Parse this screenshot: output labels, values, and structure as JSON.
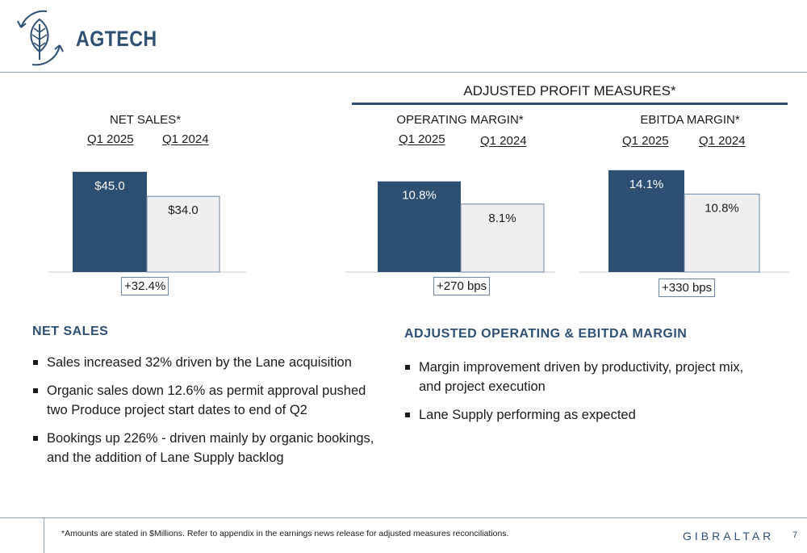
{
  "header": {
    "title": "AGTECH"
  },
  "adjusted_group": {
    "title": "ADJUSTED PROFIT MEASURES*"
  },
  "chart_data": [
    {
      "type": "bar",
      "title": "NET SALES*",
      "categories": [
        "Q1 2025",
        "Q1 2024"
      ],
      "values": [
        45.0,
        34.0
      ],
      "value_labels": [
        "$45.0",
        "$34.0"
      ],
      "change_label": "+32.4%",
      "unit": "$Millions",
      "colors": [
        "#2d4f72",
        "#efefef"
      ]
    },
    {
      "type": "bar",
      "title": "OPERATING MARGIN*",
      "categories": [
        "Q1 2025",
        "Q1 2024"
      ],
      "values": [
        10.8,
        8.1
      ],
      "value_labels": [
        "10.8%",
        "8.1%"
      ],
      "change_label": "+270 bps",
      "unit": "%",
      "colors": [
        "#2d4f72",
        "#efefef"
      ]
    },
    {
      "type": "bar",
      "title": "EBITDA MARGIN*",
      "categories": [
        "Q1 2025",
        "Q1 2024"
      ],
      "values": [
        14.1,
        10.8
      ],
      "value_labels": [
        "14.1%",
        "10.8%"
      ],
      "change_label": "+330 bps",
      "unit": "%",
      "colors": [
        "#2d4f72",
        "#efefef"
      ]
    }
  ],
  "sections": {
    "net_sales": {
      "heading": "NET SALES",
      "bullets": [
        "Sales increased 32% driven by the Lane acquisition",
        "Organic sales down 12.6% as permit approval pushed two Produce project start dates to end of Q2",
        "Bookings up 226% - driven mainly by organic bookings, and the addition of Lane Supply backlog"
      ]
    },
    "margin": {
      "heading": "ADJUSTED OPERATING & EBITDA MARGIN",
      "bullets": [
        "Margin improvement driven by productivity, project mix, and project execution",
        "Lane Supply performing as expected"
      ]
    }
  },
  "footer": {
    "note": "*Amounts are stated in $Millions. Refer to appendix in the earnings news release for adjusted measures reconciliations.",
    "brand": "GIBRALTAR",
    "page_number": "7"
  },
  "icons": {
    "logo": "leaf-cycle-icon"
  },
  "colors": {
    "accent": "#2e5073",
    "bar_dark": "#2d4f72",
    "bar_light": "#efefef"
  }
}
